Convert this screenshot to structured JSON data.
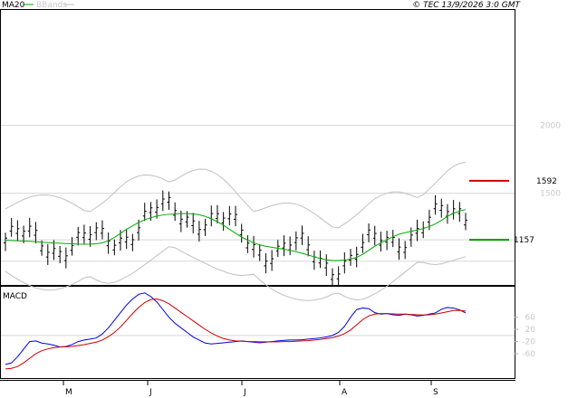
{
  "copyright": "© TEC 13/9/2026 3:0 GMT",
  "colors": {
    "ma": "#00aa00",
    "bbands": "#c0c0c0",
    "price": "#000000",
    "macd": "#0000dd",
    "signal": "#cc0000",
    "resistance": "#cc0000",
    "support": "#009900",
    "grid": "#d8d8d8"
  },
  "chart_data": [
    {
      "type": "candlestick",
      "title": "",
      "legend": [
        {
          "label": "MA20",
          "color": "#00aa00"
        },
        {
          "label": "BBands",
          "color": "#c0c0c0"
        }
      ],
      "legend_position": "top-left",
      "y_ticks": [
        "2000",
        "1500"
      ],
      "y_tick_values": [
        2000,
        1500
      ],
      "x_ticks": [
        "M",
        "J",
        "J",
        "A",
        "S"
      ],
      "grid": true,
      "levels": [
        {
          "label": "1592",
          "value": 1592,
          "color": "#cc0000"
        },
        {
          "label": "1157",
          "value": 1157,
          "color": "#009900"
        }
      ],
      "ylim": [
        825,
        2850
      ],
      "series": [
        {
          "name": "MA20",
          "values": [
            1155,
            1152,
            1150,
            1148,
            1146,
            1143,
            1140,
            1137,
            1134,
            1132,
            1130,
            1128,
            1126,
            1125,
            1126,
            1128,
            1135,
            1150,
            1175,
            1205,
            1235,
            1260,
            1285,
            1305,
            1320,
            1332,
            1340,
            1345,
            1348,
            1350,
            1350,
            1348,
            1342,
            1330,
            1312,
            1290,
            1265,
            1235,
            1205,
            1178,
            1155,
            1135,
            1120,
            1110,
            1102,
            1095,
            1088,
            1080,
            1070,
            1058,
            1045,
            1032,
            1020,
            1010,
            1005,
            1005,
            1008,
            1015,
            1028,
            1050,
            1080,
            1110,
            1135,
            1158,
            1180,
            1198,
            1210,
            1220,
            1230,
            1240,
            1255,
            1275,
            1300,
            1330,
            1352,
            1370,
            1380
          ]
        }
      ]
    },
    {
      "type": "line",
      "title": "MACD",
      "y_ticks": [
        "60",
        "20",
        "-20",
        "-60"
      ],
      "y_tick_values": [
        60,
        20,
        -20,
        -60
      ],
      "ylim": [
        -140,
        160
      ],
      "series": [
        {
          "name": "",
          "values": [
            -95,
            -90,
            -70,
            -45,
            -20,
            -18,
            -25,
            -28,
            -32,
            -38,
            -36,
            -30,
            -20,
            -15,
            -12,
            -8,
            5,
            25,
            50,
            75,
            100,
            120,
            135,
            140,
            128,
            110,
            85,
            60,
            40,
            25,
            10,
            -5,
            -15,
            -25,
            -28,
            -26,
            -24,
            -22,
            -20,
            -18,
            -20,
            -22,
            -24,
            -22,
            -20,
            -18,
            -16,
            -15,
            -15,
            -14,
            -12,
            -10,
            -8,
            -5,
            0,
            10,
            30,
            60,
            85,
            90,
            88,
            75,
            70,
            72,
            68,
            66,
            70,
            68,
            64,
            66,
            70,
            74,
            86,
            92,
            90,
            84,
            74
          ]
        },
        {
          "name": "",
          "values": [
            -110,
            -108,
            -102,
            -90,
            -75,
            -60,
            -50,
            -44,
            -40,
            -38,
            -37,
            -36,
            -33,
            -30,
            -26,
            -22,
            -15,
            -4,
            10,
            28,
            50,
            72,
            92,
            108,
            118,
            120,
            114,
            104,
            90,
            76,
            62,
            48,
            34,
            20,
            8,
            -2,
            -10,
            -15,
            -18,
            -19,
            -20,
            -20,
            -21,
            -21,
            -21,
            -21,
            -20,
            -20,
            -19,
            -18,
            -17,
            -15,
            -13,
            -10,
            -7,
            -2,
            6,
            18,
            35,
            52,
            64,
            70,
            72,
            72,
            71,
            70,
            70,
            69,
            68,
            67,
            68,
            70,
            74,
            78,
            82,
            82,
            80
          ]
        }
      ]
    }
  ]
}
